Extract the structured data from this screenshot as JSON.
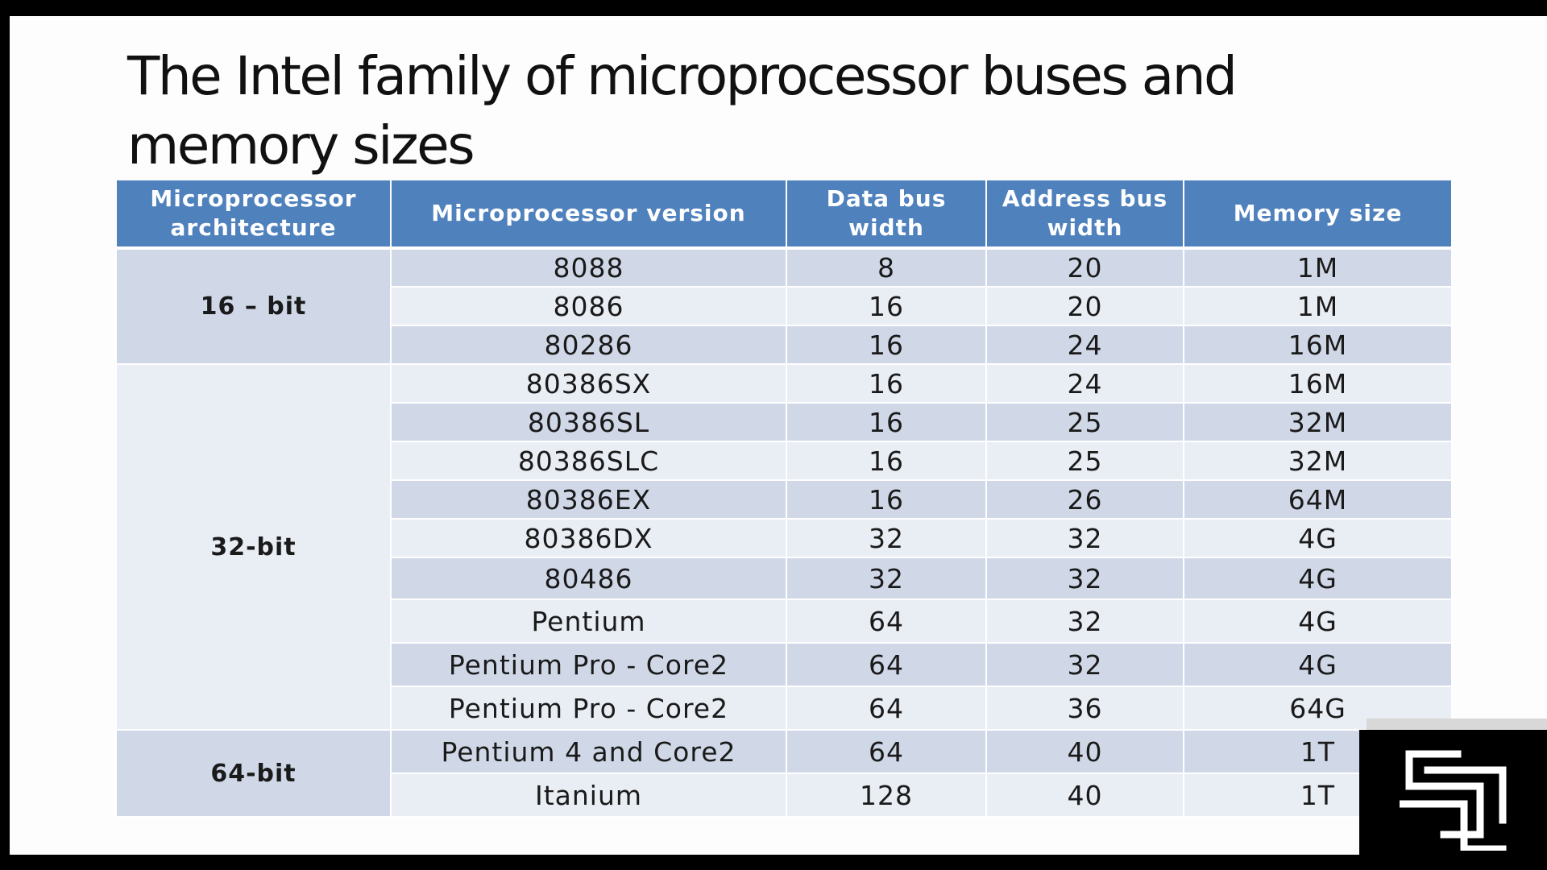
{
  "slide": {
    "title": "The Intel family of microprocessor buses and memory sizes"
  },
  "table": {
    "headers": [
      "Microprocessor architecture",
      "Microprocessor version",
      "Data bus width",
      "Address bus width",
      "Memory size"
    ],
    "groups": [
      {
        "architecture": "16 – bit",
        "rows": [
          [
            "8088",
            "8",
            "20",
            "1M"
          ],
          [
            "8086",
            "16",
            "20",
            "1M"
          ],
          [
            "80286",
            "16",
            "24",
            "16M"
          ]
        ]
      },
      {
        "architecture": "32-bit",
        "rows": [
          [
            "80386SX",
            "16",
            "24",
            "16M"
          ],
          [
            "80386SL",
            "16",
            "25",
            "32M"
          ],
          [
            "80386SLC",
            "16",
            "25",
            "32M"
          ],
          [
            "80386EX",
            "16",
            "26",
            "64M"
          ],
          [
            "80386DX",
            "32",
            "32",
            "4G"
          ],
          [
            "80486",
            "32",
            "32",
            "4G"
          ],
          [
            "Pentium",
            "64",
            "32",
            "4G"
          ],
          [
            "Pentium Pro - Core2",
            "64",
            "32",
            "4G"
          ],
          [
            "Pentium Pro - Core2",
            "64",
            "36",
            "64G"
          ]
        ]
      },
      {
        "architecture": "64-bit",
        "rows": [
          [
            "Pentium 4 and Core2",
            "64",
            "40",
            "1T"
          ],
          [
            "Itanium",
            "128",
            "40",
            "1T"
          ]
        ]
      }
    ]
  },
  "colors": {
    "header_bg": "#4f81bd",
    "row_dark": "#d0d8e8",
    "row_light": "#e9edf4"
  },
  "logo": {
    "icon": "channel-logo-icon"
  }
}
